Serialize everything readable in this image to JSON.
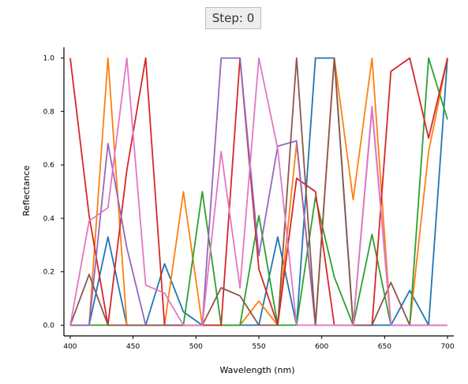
{
  "step_label": "Step: 0",
  "chart_data": {
    "type": "line",
    "xlabel": "Wavelength (nm)",
    "ylabel": "Reflectance",
    "xlim": [
      395,
      705
    ],
    "ylim": [
      -0.04,
      1.04
    ],
    "xticks": [
      "400",
      "450",
      "500",
      "550",
      "600",
      "650",
      "700"
    ],
    "yticks": [
      "0.0",
      "0.2",
      "0.4",
      "0.6",
      "0.8",
      "1.0"
    ],
    "grid": false,
    "x": [
      400,
      415,
      430,
      445,
      460,
      475,
      490,
      505,
      520,
      535,
      550,
      565,
      580,
      595,
      610,
      625,
      640,
      655,
      670,
      685,
      700
    ],
    "series": [
      {
        "color": "#1f77b4",
        "values": [
          0.0,
          0.0,
          0.33,
          0.0,
          0.0,
          0.23,
          0.05,
          0.0,
          0.0,
          0.0,
          0.0,
          0.33,
          0.0,
          1.0,
          1.0,
          0.0,
          0.0,
          0.0,
          0.13,
          0.0,
          1.0
        ]
      },
      {
        "color": "#ff7f0e",
        "values": [
          0.0,
          0.0,
          1.0,
          0.0,
          0.0,
          0.0,
          0.5,
          0.0,
          0.0,
          0.0,
          0.09,
          0.0,
          0.68,
          0.0,
          1.0,
          0.47,
          1.0,
          0.0,
          0.0,
          0.65,
          1.0
        ]
      },
      {
        "color": "#2ca02c",
        "values": [
          0.0,
          0.0,
          0.0,
          0.0,
          0.0,
          0.0,
          0.0,
          0.5,
          0.0,
          0.0,
          0.41,
          0.0,
          0.0,
          0.48,
          0.18,
          0.0,
          0.34,
          0.0,
          0.0,
          1.0,
          0.77
        ]
      },
      {
        "color": "#d62728",
        "values": [
          1.0,
          0.41,
          0.0,
          0.58,
          1.0,
          0.0,
          0.0,
          0.0,
          0.0,
          1.0,
          0.21,
          0.0,
          0.55,
          0.5,
          0.0,
          0.0,
          0.0,
          0.95,
          1.0,
          0.7,
          1.0
        ]
      },
      {
        "color": "#9467bd",
        "values": [
          0.0,
          0.0,
          0.68,
          0.29,
          0.0,
          0.0,
          0.0,
          0.0,
          1.0,
          1.0,
          0.26,
          0.67,
          0.69,
          0.0,
          0.0,
          0.0,
          0.81,
          0.0,
          0.0,
          0.0,
          0.0
        ]
      },
      {
        "color": "#8c564b",
        "values": [
          0.0,
          0.19,
          0.0,
          0.0,
          0.0,
          0.0,
          0.0,
          0.0,
          0.14,
          0.11,
          0.0,
          0.0,
          1.0,
          0.0,
          1.0,
          0.0,
          0.0,
          0.16,
          0.0,
          0.0,
          0.0
        ]
      },
      {
        "color": "#e377c2",
        "values": [
          0.0,
          0.39,
          0.44,
          1.0,
          0.15,
          0.12,
          0.0,
          0.0,
          0.65,
          0.14,
          1.0,
          0.66,
          0.0,
          0.0,
          0.0,
          0.0,
          0.82,
          0.0,
          0.0,
          0.0,
          0.0
        ]
      }
    ]
  }
}
